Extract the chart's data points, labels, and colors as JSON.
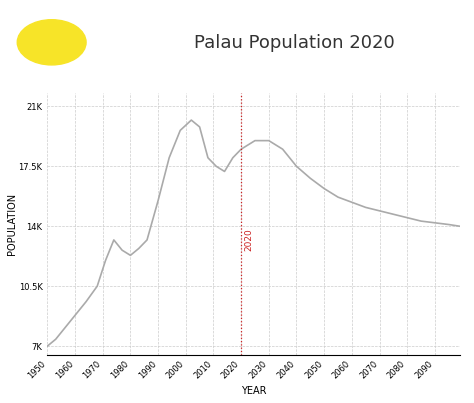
{
  "title": "Palau Population 2020",
  "xlabel": "YEAR",
  "ylabel": "POPULATION",
  "line_color": "#aaaaaa",
  "line_width": 1.2,
  "vline_year": 2020,
  "vline_color": "#cc2222",
  "vline_style": ":",
  "vline_label": "2020",
  "grid_color": "#cccccc",
  "grid_style": "--",
  "background_color": "#ffffff",
  "xlim": [
    1950,
    2099
  ],
  "ylim": [
    6500,
    21800
  ],
  "yticks": [
    7000,
    10500,
    14000,
    17500,
    21000
  ],
  "ytick_labels": [
    "7K",
    "10.5K",
    "14K",
    "17.5K",
    "21K"
  ],
  "xticks": [
    1950,
    1960,
    1970,
    1980,
    1990,
    2000,
    2010,
    2020,
    2030,
    2040,
    2050,
    2060,
    2070,
    2080,
    2090
  ],
  "years": [
    1950,
    1953,
    1956,
    1960,
    1964,
    1968,
    1971,
    1974,
    1977,
    1980,
    1983,
    1986,
    1990,
    1994,
    1998,
    2002,
    2005,
    2008,
    2011,
    2014,
    2017,
    2020,
    2025,
    2030,
    2035,
    2040,
    2045,
    2050,
    2055,
    2060,
    2065,
    2070,
    2075,
    2080,
    2085,
    2090,
    2095,
    2099
  ],
  "population": [
    7000,
    7400,
    8000,
    8800,
    9600,
    10500,
    12000,
    13200,
    12600,
    12300,
    12700,
    13200,
    15500,
    18000,
    19600,
    20200,
    19800,
    18000,
    17500,
    17200,
    18000,
    18500,
    19000,
    19000,
    18500,
    17500,
    16800,
    16200,
    15700,
    15400,
    15100,
    14900,
    14700,
    14500,
    14300,
    14200,
    14100,
    14000
  ],
  "flag_blue": "#4ab5e0",
  "flag_yellow": "#f7e428",
  "title_fontsize": 13,
  "axis_label_fontsize": 7,
  "tick_fontsize": 6
}
